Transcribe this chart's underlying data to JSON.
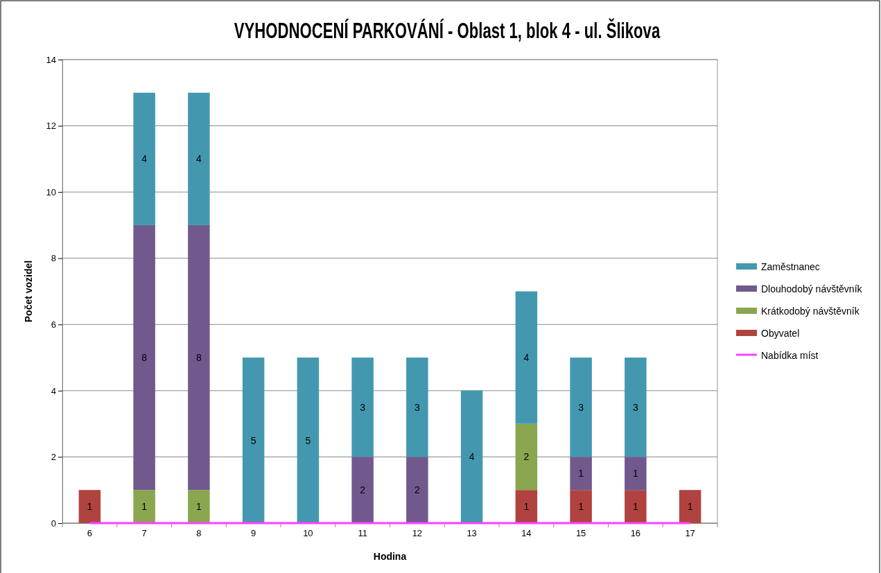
{
  "chart_data": {
    "type": "bar",
    "title": "VYHODNOCENÍ PARKOVÁNÍ - Oblast 1, blok 4 - ul. Šlikova",
    "xlabel": "Hodina",
    "ylabel": "Počet vozidel",
    "categories": [
      "6",
      "7",
      "8",
      "9",
      "10",
      "11",
      "12",
      "13",
      "14",
      "15",
      "16",
      "17"
    ],
    "stacked": true,
    "grid": "y",
    "legend": "right",
    "ylim": [
      0,
      14
    ],
    "yticks": [
      0,
      2,
      4,
      6,
      8,
      10,
      12,
      14
    ],
    "series": [
      {
        "name": "Obyvatel",
        "color": "#b0433f",
        "values": [
          1,
          null,
          null,
          null,
          null,
          null,
          null,
          null,
          1,
          1,
          1,
          1
        ],
        "value_labels": [
          "1",
          null,
          null,
          null,
          null,
          null,
          null,
          null,
          "1",
          "1",
          "1",
          "1"
        ]
      },
      {
        "name": "Krátkodobý návštěvník",
        "color": "#8aa64f",
        "values": [
          null,
          1,
          1,
          null,
          null,
          null,
          null,
          null,
          2,
          null,
          null,
          null
        ],
        "value_labels": [
          null,
          "1",
          "1",
          null,
          null,
          null,
          null,
          null,
          "2",
          null,
          null,
          null
        ]
      },
      {
        "name": "Dlouhodobý návštěvník",
        "color": "#71598e",
        "values": [
          null,
          8,
          8,
          null,
          null,
          2,
          2,
          null,
          null,
          1,
          1,
          null
        ],
        "value_labels": [
          null,
          "8",
          "8",
          null,
          null,
          "2",
          "2",
          null,
          null,
          "1",
          "1",
          null
        ]
      },
      {
        "name": "Zaměstnanec",
        "color": "#4398b0",
        "values": [
          null,
          4,
          4,
          5,
          5,
          3,
          3,
          4,
          4,
          3,
          3,
          null
        ],
        "value_labels": [
          null,
          "4",
          "4",
          "5",
          "5",
          "3",
          "3",
          "4",
          "4",
          "3",
          "3",
          null
        ]
      },
      {
        "name": "Nabídka míst",
        "type": "line",
        "color": "#ff40ff",
        "values": [
          0,
          0,
          0,
          0,
          0,
          0,
          0,
          0,
          0,
          0,
          0,
          0
        ]
      }
    ]
  }
}
